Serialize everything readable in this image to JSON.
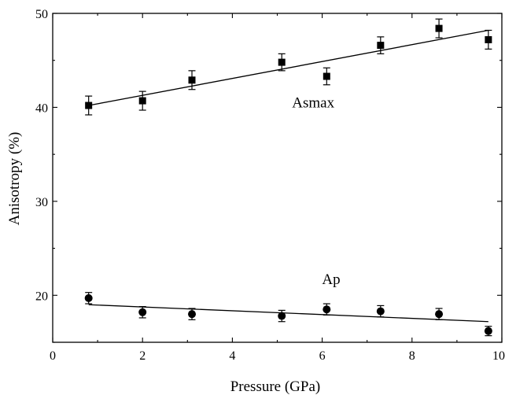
{
  "chart_data": {
    "type": "scatter",
    "xlabel": "Pressure (GPa)",
    "ylabel": "Anisotropy (%)",
    "xlim": [
      0,
      10
    ],
    "ylim": [
      15,
      50
    ],
    "xticks": [
      0,
      2,
      4,
      6,
      8,
      10
    ],
    "xtick_labels": [
      "0",
      "2",
      "4",
      "6",
      "8",
      "10"
    ],
    "yticks": [
      20,
      30,
      40,
      50
    ],
    "ytick_labels": [
      "20",
      "30",
      "40",
      "50"
    ],
    "grid": false,
    "legend": "none",
    "series": [
      {
        "name": "Asmax",
        "marker": "square",
        "color": "#000000",
        "x": [
          0.8,
          2.0,
          3.1,
          5.1,
          6.1,
          7.3,
          8.6,
          9.7
        ],
        "y": [
          40.2,
          40.7,
          42.9,
          44.8,
          43.3,
          46.6,
          48.4,
          47.2
        ],
        "error": [
          1.0,
          1.0,
          1.0,
          0.9,
          0.9,
          0.9,
          1.0,
          1.0
        ],
        "fit": {
          "x": [
            0.8,
            9.7
          ],
          "y": [
            40.2,
            48.2
          ]
        }
      },
      {
        "name": "Ap",
        "marker": "circle",
        "color": "#000000",
        "x": [
          0.8,
          2.0,
          3.1,
          5.1,
          6.1,
          7.3,
          8.6,
          9.7
        ],
        "y": [
          19.7,
          18.2,
          18.0,
          17.8,
          18.5,
          18.3,
          18.0,
          16.2
        ],
        "error": [
          0.6,
          0.6,
          0.6,
          0.6,
          0.6,
          0.6,
          0.6,
          0.5
        ],
        "fit": {
          "x": [
            0.8,
            9.7
          ],
          "y": [
            19.0,
            17.2
          ]
        }
      }
    ],
    "annotations": [
      {
        "text": "Asmax",
        "x": 5.8,
        "y": 40.0
      },
      {
        "text": "Ap",
        "x": 6.2,
        "y": 21.2
      }
    ]
  }
}
